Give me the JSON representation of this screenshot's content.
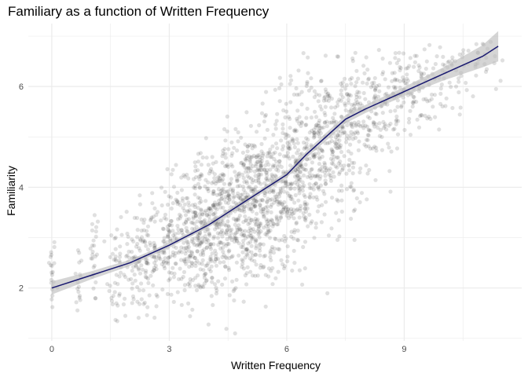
{
  "chart_data": {
    "type": "scatter",
    "title": "Familiary as a function of Written Frequency",
    "xlabel": "Written Frequency",
    "ylabel": "Familiarity",
    "xlim": [
      -0.6,
      12.0
    ],
    "ylim": [
      0.95,
      7.25
    ],
    "x_ticks": [
      0,
      3,
      6,
      9
    ],
    "x_minor_ticks": [
      1.5,
      4.5,
      7.5,
      10.5
    ],
    "y_ticks": [
      2,
      4,
      6
    ],
    "y_minor_ticks": [
      1,
      3,
      5,
      7
    ],
    "grid": true,
    "legend": "none",
    "colors": {
      "points": "#000000",
      "point_opacity": 0.12,
      "smooth_line": "#191970",
      "confidence_band": "#bebebe",
      "grid": "#ebebeb"
    },
    "series": [
      {
        "kind": "points",
        "approx_count": 2200,
        "clusters_x_y_spread": [
          [
            0.0,
            2.3,
            0.05,
            0.4
          ],
          [
            0.7,
            2.1,
            0.05,
            0.45
          ],
          [
            1.1,
            2.6,
            0.05,
            0.5
          ],
          [
            1.6,
            2.3,
            0.1,
            0.55
          ],
          [
            2.2,
            2.5,
            0.3,
            0.6
          ],
          [
            3.0,
            2.8,
            0.5,
            0.6
          ],
          [
            4.0,
            3.2,
            0.5,
            0.7
          ],
          [
            5.0,
            3.6,
            0.5,
            0.75
          ],
          [
            6.0,
            4.2,
            0.5,
            0.8
          ],
          [
            7.0,
            4.8,
            0.5,
            0.75
          ],
          [
            8.0,
            5.5,
            0.5,
            0.6
          ],
          [
            9.0,
            5.9,
            0.5,
            0.45
          ],
          [
            10.0,
            6.2,
            0.4,
            0.35
          ],
          [
            11.0,
            6.6,
            0.3,
            0.25
          ]
        ]
      },
      {
        "kind": "smooth",
        "x": [
          0,
          1,
          2,
          3,
          4,
          4.5,
          5,
          6,
          6.5,
          7,
          7.5,
          8,
          9,
          10,
          11,
          11.4
        ],
        "y": [
          2.0,
          2.25,
          2.5,
          2.85,
          3.25,
          3.5,
          3.75,
          4.25,
          4.65,
          5.0,
          5.35,
          5.55,
          5.9,
          6.25,
          6.6,
          6.8
        ],
        "ci_halfwidth": [
          0.13,
          0.08,
          0.06,
          0.05,
          0.05,
          0.05,
          0.05,
          0.06,
          0.07,
          0.08,
          0.08,
          0.08,
          0.09,
          0.13,
          0.22,
          0.3
        ]
      }
    ]
  }
}
